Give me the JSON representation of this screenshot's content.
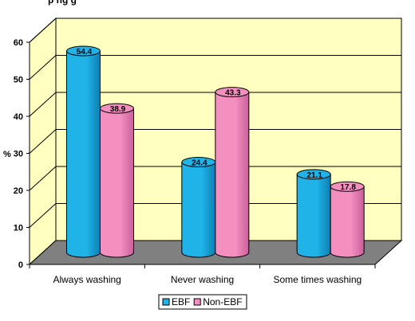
{
  "chart_data": {
    "type": "bar",
    "title": "",
    "title_fragment": "p  ng                                               g",
    "ylabel": "%",
    "xlabel": "",
    "ylim": [
      0,
      60
    ],
    "yticks": [
      0,
      10,
      20,
      30,
      40,
      50,
      60
    ],
    "categories": [
      "Always washing",
      "Never washing",
      "Some times washing"
    ],
    "series": [
      {
        "name": "EBF",
        "values": [
          54.4,
          24.4,
          21.1
        ],
        "labels": [
          "54.4",
          "24.4",
          "21.1"
        ]
      },
      {
        "name": "Non-EBF",
        "values": [
          38.9,
          43.3,
          17.8
        ],
        "labels": [
          "38.9",
          "43.3",
          "17.8"
        ]
      }
    ],
    "grid": true,
    "legend": "bottom",
    "style": "3d-cylinder"
  },
  "colors": {
    "ebf": "#1fb3e8",
    "ebf_dark": "#0e7fb0",
    "nonebf": "#f48fc0",
    "nonebf_dark": "#c9609a",
    "plot_bg": "#ffffc0",
    "floor": "#808080"
  }
}
